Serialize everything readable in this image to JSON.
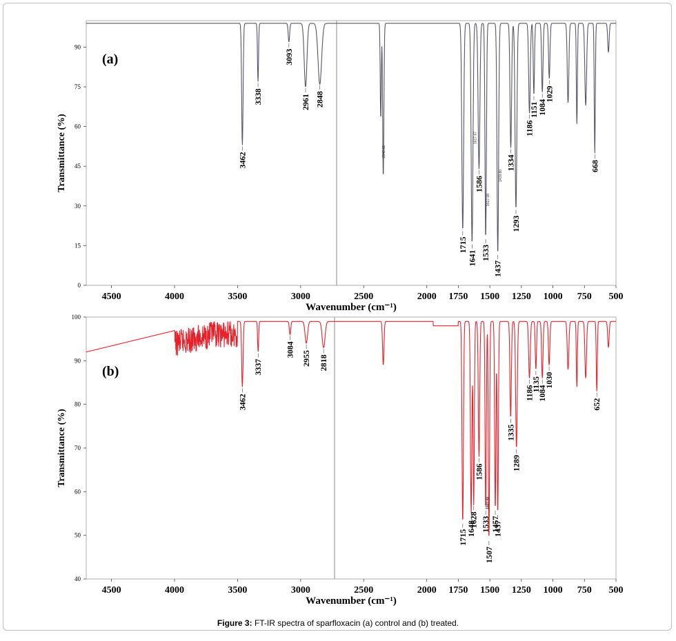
{
  "caption": {
    "label": "Figure 3:",
    "text": "FT-IR spectra of sparfloxacin (a) control and (b) treated."
  },
  "chart_data": [
    {
      "type": "line",
      "panel_label": "(a)",
      "title": "",
      "xlabel": "Wavenumber (cm⁻¹)",
      "ylabel": "Transmittance (%)",
      "xlim": [
        4700,
        500
      ],
      "ylim": [
        0,
        100
      ],
      "xticks": [
        4500,
        4000,
        3500,
        3000,
        2500,
        2000,
        1750,
        1500,
        1250,
        1000,
        750,
        500
      ],
      "yticks": [
        0,
        15,
        30,
        45,
        60,
        75,
        90
      ],
      "color": "#555566",
      "baseline": 99,
      "peaks": [
        {
          "x": 3462,
          "y": 53,
          "w": 8,
          "label": "3462"
        },
        {
          "x": 3338,
          "y": 77,
          "w": 6,
          "label": "3338"
        },
        {
          "x": 3093,
          "y": 92,
          "w": 8,
          "label": "3093"
        },
        {
          "x": 2961,
          "y": 75,
          "w": 15,
          "label": "2961"
        },
        {
          "x": 2848,
          "y": 76,
          "w": 20,
          "label": "2848"
        },
        {
          "x": 2345,
          "y": 41,
          "w": 7,
          "label": ""
        },
        {
          "x": 2365,
          "y": 63,
          "w": 6,
          "label": ""
        },
        {
          "x": 1715,
          "y": 21,
          "w": 10,
          "label": "1715"
        },
        {
          "x": 1641,
          "y": 16,
          "w": 10,
          "label": "1641"
        },
        {
          "x": 1586,
          "y": 44,
          "w": 10,
          "label": "1586"
        },
        {
          "x": 1533,
          "y": 18,
          "w": 8,
          "label": "1533"
        },
        {
          "x": 1437,
          "y": 12,
          "w": 9,
          "label": "1437"
        },
        {
          "x": 1334,
          "y": 52,
          "w": 9,
          "label": "1334"
        },
        {
          "x": 1293,
          "y": 29,
          "w": 10,
          "label": "1293"
        },
        {
          "x": 1186,
          "y": 65,
          "w": 9,
          "label": "1186"
        },
        {
          "x": 1151,
          "y": 72,
          "w": 7,
          "label": "1151"
        },
        {
          "x": 1084,
          "y": 73,
          "w": 8,
          "label": "1084"
        },
        {
          "x": 1029,
          "y": 78,
          "w": 8,
          "label": "1029"
        },
        {
          "x": 880,
          "y": 69,
          "w": 9,
          "label": ""
        },
        {
          "x": 810,
          "y": 61,
          "w": 6,
          "label": ""
        },
        {
          "x": 740,
          "y": 68,
          "w": 10,
          "label": ""
        },
        {
          "x": 668,
          "y": 50,
          "w": 6,
          "label": "668"
        },
        {
          "x": 560,
          "y": 88,
          "w": 8,
          "label": ""
        }
      ],
      "annotations": [
        "2342.82",
        "1617.67",
        "1517.08",
        "1419.80"
      ]
    },
    {
      "type": "line",
      "panel_label": "(b)",
      "title": "",
      "xlabel": "Wavenumber (cm⁻¹)",
      "ylabel": "Transmittance (%)",
      "xlim": [
        4700,
        500
      ],
      "ylim": [
        40,
        100
      ],
      "xticks": [
        4500,
        4000,
        3500,
        3000,
        2500,
        2000,
        1750,
        1500,
        1250,
        1000,
        750,
        500
      ],
      "yticks": [
        40,
        50,
        60,
        70,
        80,
        90,
        100
      ],
      "color": "#e8202a",
      "baseline": 99,
      "peaks": [
        {
          "x": 3462,
          "y": 84,
          "w": 8,
          "label": "3462"
        },
        {
          "x": 3337,
          "y": 92,
          "w": 6,
          "label": "3337"
        },
        {
          "x": 3084,
          "y": 96,
          "w": 8,
          "label": "3084"
        },
        {
          "x": 2955,
          "y": 94,
          "w": 14,
          "label": "2955"
        },
        {
          "x": 2818,
          "y": 93,
          "w": 16,
          "label": "2818"
        },
        {
          "x": 2345,
          "y": 89,
          "w": 8,
          "label": ""
        },
        {
          "x": 1715,
          "y": 53,
          "w": 8,
          "label": "1715"
        },
        {
          "x": 1648,
          "y": 55,
          "w": 8,
          "label": "1648"
        },
        {
          "x": 1628,
          "y": 57,
          "w": 7,
          "label": "1628"
        },
        {
          "x": 1586,
          "y": 68,
          "w": 8,
          "label": "1586"
        },
        {
          "x": 1533,
          "y": 56,
          "w": 7,
          "label": "1533"
        },
        {
          "x": 1507,
          "y": 49,
          "w": 7,
          "label": "1507"
        },
        {
          "x": 1457,
          "y": 56,
          "w": 7,
          "label": "1457"
        },
        {
          "x": 1437,
          "y": 55,
          "w": 7,
          "label": "1437"
        },
        {
          "x": 1335,
          "y": 77,
          "w": 8,
          "label": "1335"
        },
        {
          "x": 1289,
          "y": 70,
          "w": 9,
          "label": "1289"
        },
        {
          "x": 1186,
          "y": 86,
          "w": 9,
          "label": "1186"
        },
        {
          "x": 1135,
          "y": 88,
          "w": 7,
          "label": "1135"
        },
        {
          "x": 1084,
          "y": 86,
          "w": 8,
          "label": "1084"
        },
        {
          "x": 1030,
          "y": 89,
          "w": 8,
          "label": "1030"
        },
        {
          "x": 880,
          "y": 88,
          "w": 9,
          "label": ""
        },
        {
          "x": 810,
          "y": 84,
          "w": 6,
          "label": ""
        },
        {
          "x": 740,
          "y": 86,
          "w": 9,
          "label": ""
        },
        {
          "x": 652,
          "y": 83,
          "w": 6,
          "label": "652"
        },
        {
          "x": 560,
          "y": 93,
          "w": 8,
          "label": ""
        }
      ],
      "annotations": [
        "1526.43",
        "1517.00"
      ]
    }
  ]
}
